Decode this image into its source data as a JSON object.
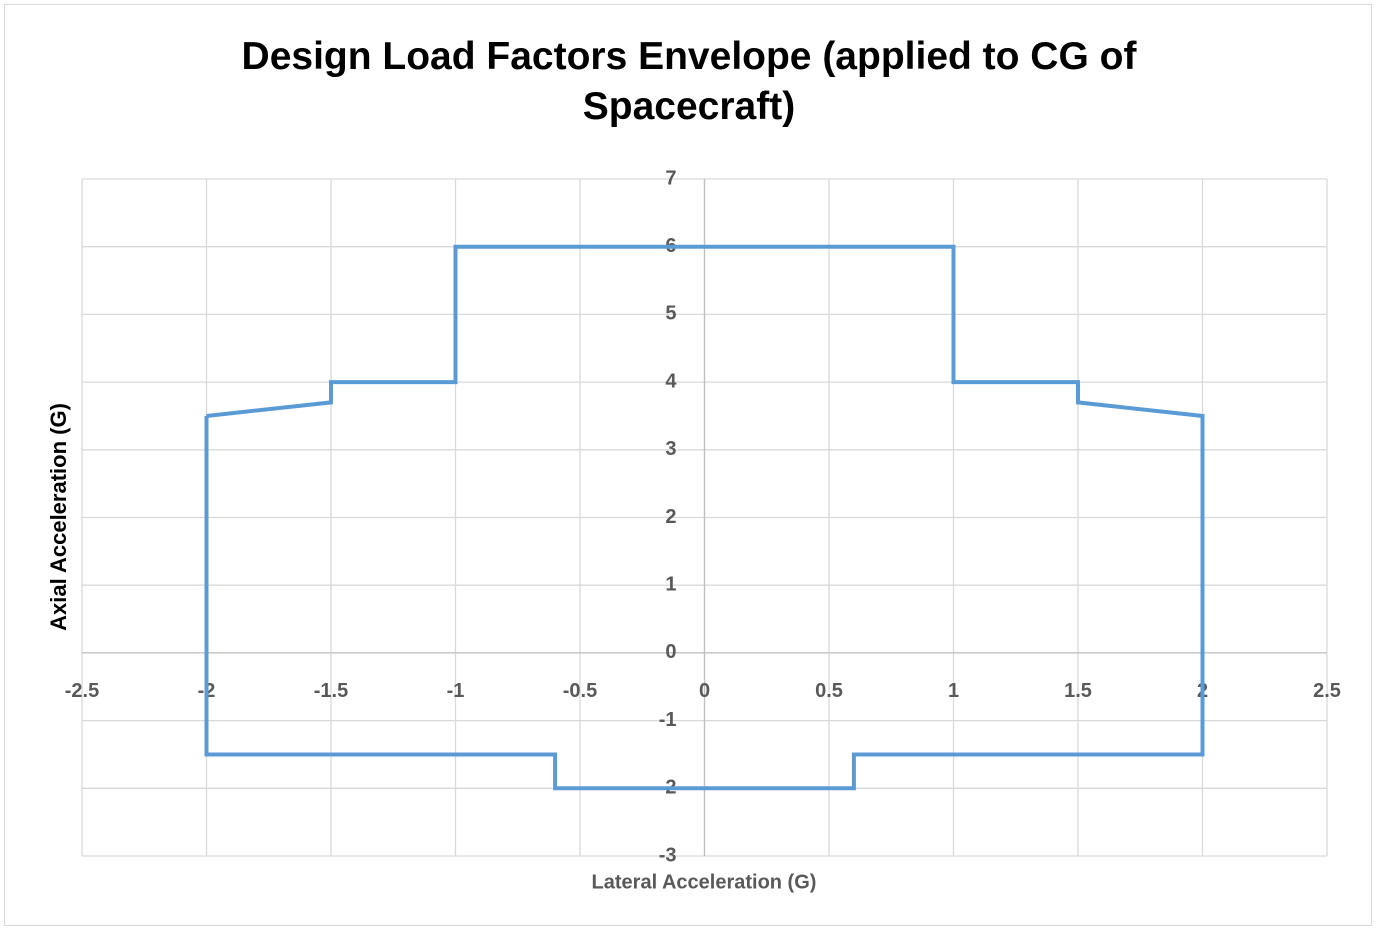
{
  "chart_data": {
    "type": "line",
    "title": "Design Load Factors Envelope (applied to CG of Spacecraft)",
    "xlabel": "Lateral Acceleration (G)",
    "ylabel": "Axial Acceleration (G)",
    "x": [
      -2,
      -1.5,
      -1.5,
      -1,
      -1,
      1,
      1,
      1.5,
      1.5,
      2,
      2,
      0.6,
      0.6,
      -0.6,
      -0.6,
      -2,
      -2
    ],
    "values": [
      3.5,
      3.7,
      4,
      4,
      6,
      6,
      4,
      4,
      3.7,
      3.5,
      -1.5,
      -1.5,
      -2,
      -2,
      -1.5,
      -1.5,
      3.5
    ],
    "color": "#5b9bd5",
    "xlim": [
      -2.5,
      2.5
    ],
    "xticks": [
      -2.5,
      -2,
      -1.5,
      -1,
      -0.5,
      0,
      0.5,
      1,
      1.5,
      2,
      2.5
    ],
    "ylim": [
      -3,
      7
    ],
    "yticks": [
      -3,
      -2,
      -1,
      0,
      1,
      2,
      3,
      4,
      5,
      6,
      7
    ],
    "grid": true
  }
}
